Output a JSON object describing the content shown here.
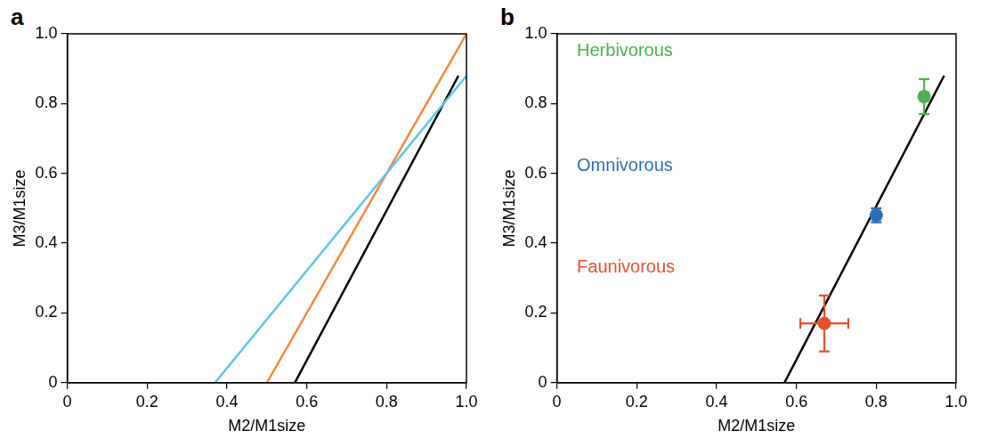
{
  "chart_data": [
    {
      "type": "line",
      "label": "a",
      "x_label": "M2/M1size",
      "y_label": "M3/M1size",
      "xlim": [
        0,
        1
      ],
      "ylim": [
        0,
        1
      ],
      "xticks": [
        0,
        0.2,
        0.4,
        0.6,
        0.8,
        {
          "value": 1,
          "label": "1.0"
        }
      ],
      "yticks": [
        0,
        0.2,
        0.4,
        0.6,
        0.8,
        {
          "value": 1,
          "label": "1.0"
        }
      ],
      "grid": false,
      "tick_labels": true,
      "series": [
        {
          "color": "#62c3e8",
          "x": [
            0.37,
            1.0
          ],
          "values": [
            0,
            0.88
          ]
        },
        {
          "color": "#f0883e",
          "x": [
            0.5,
            1.0
          ],
          "values": [
            0,
            1.0
          ]
        },
        {
          "color": "#000000",
          "x": [
            0.57,
            0.98
          ],
          "values": [
            0,
            0.88
          ]
        }
      ]
    },
    {
      "type": "scatter",
      "label": "b",
      "x_label": "M2/M1size",
      "y_label": "M3/M1size",
      "xlim": [
        0,
        1
      ],
      "ylim": [
        0,
        1
      ],
      "xticks": [
        0,
        0.2,
        0.4,
        0.6,
        0.8,
        {
          "value": 1,
          "label": "1.0"
        }
      ],
      "yticks": [
        0,
        0.2,
        0.4,
        0.6,
        0.8,
        {
          "value": 1,
          "label": "1.0"
        }
      ],
      "grid": false,
      "tick_labels": true,
      "series": [
        {
          "type": "line",
          "color": "#000000",
          "x": [
            0.57,
            0.97
          ],
          "values": [
            0,
            0.88
          ]
        },
        {
          "name": "Herbivorous",
          "color": "#4caf50",
          "marker": "circle",
          "x": [
            0.92
          ],
          "values": [
            0.82
          ],
          "x_error": [
            0.01
          ],
          "y_error": [
            0.05
          ]
        },
        {
          "name": "Omnivorous",
          "color": "#2e6db4",
          "marker": "circle",
          "x": [
            0.8
          ],
          "values": [
            0.48
          ],
          "x_error": [
            0.01
          ],
          "y_error": [
            0.02
          ]
        },
        {
          "name": "Faunivorous",
          "color": "#e4502f",
          "marker": "circle",
          "x": [
            0.67
          ],
          "values": [
            0.17
          ],
          "x_error": [
            0.06
          ],
          "y_error": [
            0.08
          ]
        }
      ]
    }
  ]
}
